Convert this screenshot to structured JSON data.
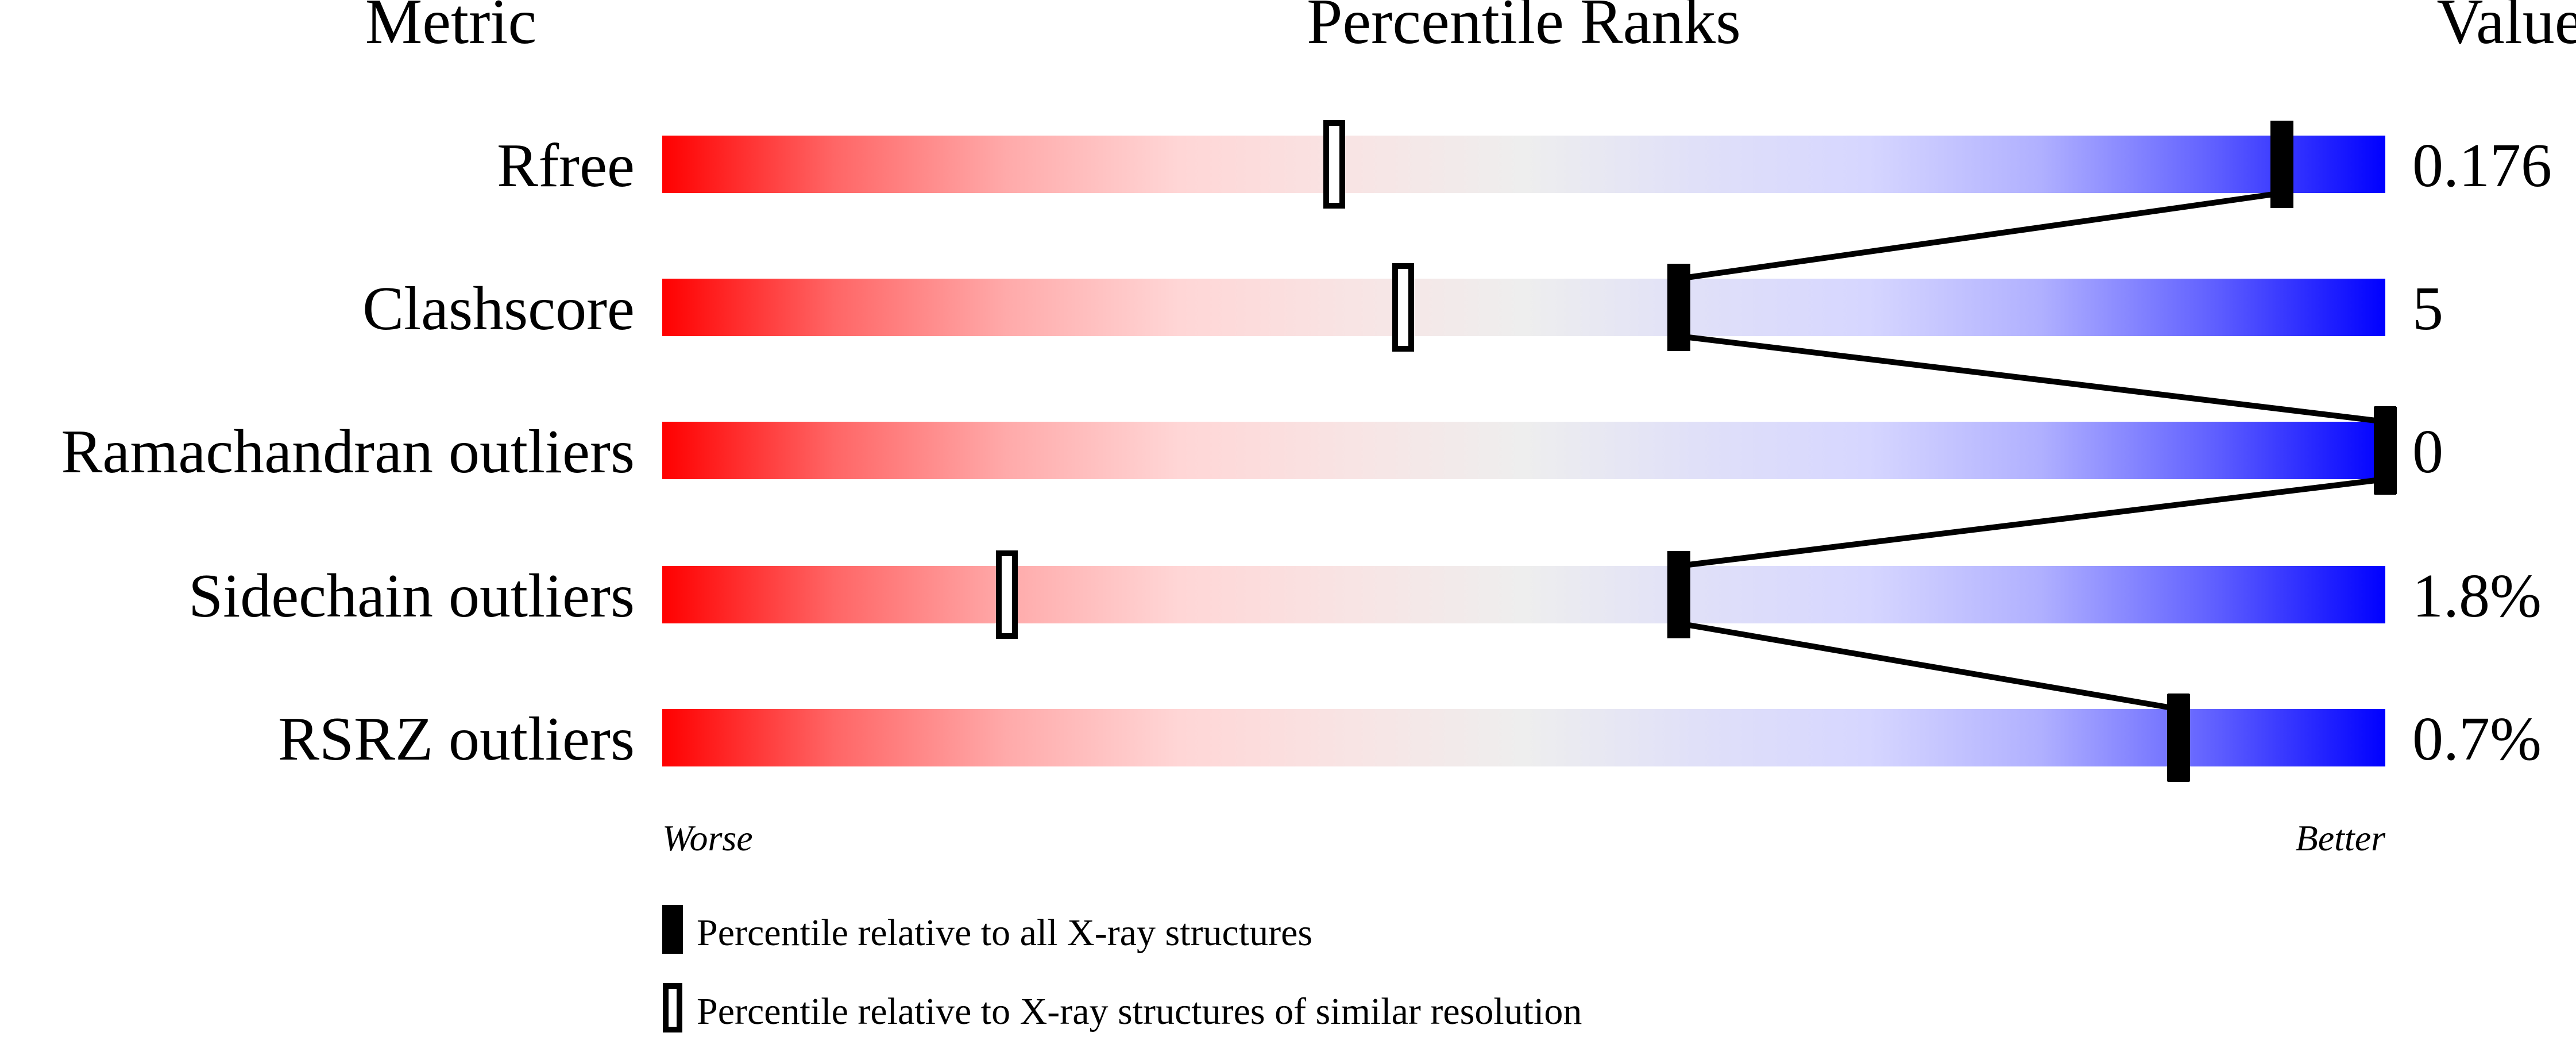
{
  "chart_data": {
    "type": "bar",
    "headers": {
      "metric": "Metric",
      "percentile": "Percentile Ranks",
      "value": "Value"
    },
    "xlim": [
      0,
      100
    ],
    "metrics": [
      {
        "name": "Rfree",
        "value": "0.176",
        "percentile_all": 94,
        "percentile_similar": 39
      },
      {
        "name": "Clashscore",
        "value": "5",
        "percentile_all": 59,
        "percentile_similar": 43
      },
      {
        "name": "Ramachandran outliers",
        "value": "0",
        "percentile_all": 100,
        "percentile_similar": 100
      },
      {
        "name": "Sidechain outliers",
        "value": "1.8%",
        "percentile_all": 59,
        "percentile_similar": 20
      },
      {
        "name": "RSRZ outliers",
        "value": "0.7%",
        "percentile_all": 88,
        "percentile_similar": 88
      }
    ],
    "axis_labels": {
      "left": "Worse",
      "right": "Better"
    },
    "legend": {
      "placement": "bottom",
      "all": "Percentile relative to all X-ray structures",
      "similar": "Percentile relative to X-ray structures of similar resolution"
    },
    "colors": {
      "worse": "#ff0000",
      "middle": "#eeeeee",
      "better": "#0000ff",
      "marker": "#000000"
    }
  }
}
